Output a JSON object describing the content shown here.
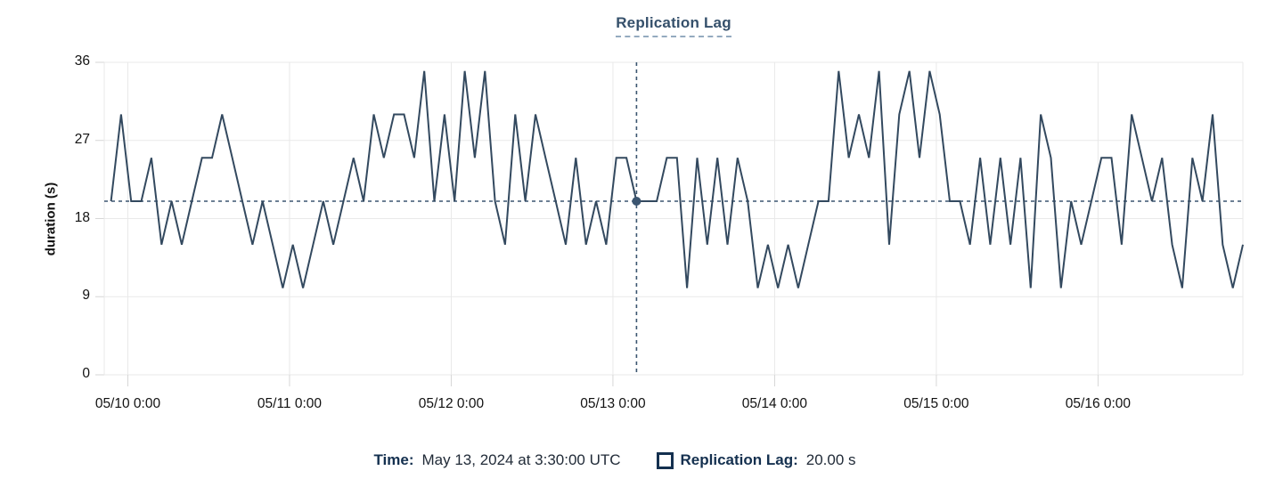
{
  "title": "Replication Lag",
  "tooltip": {
    "time_label": "Time:",
    "time_value": "May 13, 2024 at 3:30:00 UTC",
    "series_label": "Replication Lag:",
    "series_value": "20.00 s"
  },
  "colors": {
    "line": "#33495f",
    "crosshair": "#3b5570",
    "grid": "#e9e9e9",
    "tick_mark": "#d6d6d6",
    "title_text": "#35506b",
    "legend_label_text": "#14304f",
    "legend_value_text": "#212b38",
    "axis_text": "#121212"
  },
  "chart_data": {
    "type": "line",
    "title": "Replication Lag",
    "xlabel": "",
    "ylabel": "duration (s)",
    "ylim": [
      0,
      36
    ],
    "y_ticks": [
      0,
      9,
      18,
      27,
      36
    ],
    "grid": true,
    "legend_position": "bottom",
    "x_domain_hours": [
      -3.5,
      165.5
    ],
    "x_tick_hours": [
      0,
      24,
      48,
      72,
      96,
      120,
      144
    ],
    "x_tick_labels": [
      "05/10 0:00",
      "05/11 0:00",
      "05/12 0:00",
      "05/13 0:00",
      "05/14 0:00",
      "05/15 0:00",
      "05/16 0:00"
    ],
    "crosshair": {
      "hour": 75.5,
      "value": 20,
      "time_text": "May 13, 2024 at 3:30:00 UTC",
      "value_text": "20.00 s"
    },
    "series": [
      {
        "name": "Replication Lag",
        "color": "#33495f",
        "x_start_hour": -2.5,
        "x_step_hours": 1.5,
        "values": [
          20,
          30,
          20,
          20,
          25,
          15,
          20,
          15,
          20,
          25,
          25,
          30,
          25,
          20,
          15,
          20,
          15,
          10,
          15,
          10,
          15,
          20,
          15,
          20,
          25,
          20,
          30,
          25,
          30,
          30,
          25,
          35,
          20,
          30,
          20,
          35,
          25,
          35,
          20,
          15,
          30,
          20,
          30,
          25,
          20,
          15,
          25,
          15,
          20,
          15,
          25,
          25,
          20,
          20,
          20,
          25,
          25,
          10,
          25,
          15,
          25,
          15,
          25,
          20,
          10,
          15,
          10,
          15,
          10,
          15,
          20,
          20,
          35,
          25,
          30,
          25,
          35,
          15,
          30,
          35,
          25,
          35,
          30,
          20,
          20,
          15,
          25,
          15,
          25,
          15,
          25,
          10,
          30,
          25,
          10,
          20,
          15,
          20,
          25,
          25,
          15,
          30,
          25,
          20,
          25,
          15,
          10,
          25,
          20,
          30,
          15,
          10,
          15
        ]
      }
    ]
  }
}
